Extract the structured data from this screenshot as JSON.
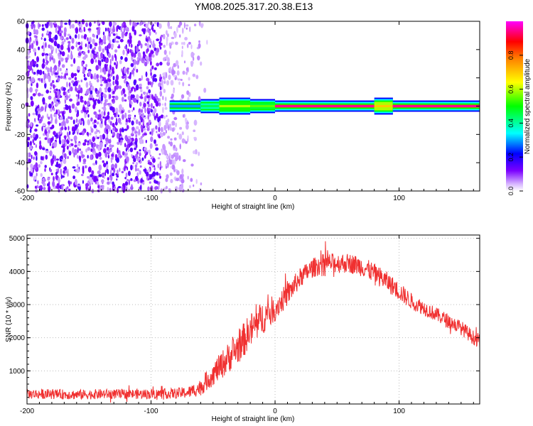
{
  "title": "YM08.2025.317.20.38.E13",
  "chart_data": [
    {
      "type": "heatmap",
      "name": "spectrogram",
      "xlabel": "Height of straight line (km)",
      "ylabel": "Frequency (Hz)",
      "xlim": [
        -200,
        165
      ],
      "ylim": [
        -60,
        60
      ],
      "xticks": [
        -200,
        -100,
        0,
        100
      ],
      "yticks": [
        -60,
        -40,
        -20,
        0,
        20,
        40,
        60
      ],
      "noise_region": {
        "x_start": -200,
        "x_end": -65,
        "description_free_value_range": [
          0.05,
          0.2
        ]
      },
      "signal_band": {
        "center_freq": 0,
        "segments": [
          {
            "x_start": -85,
            "x_end": -60,
            "amplitude": 0.3,
            "halfwidth_hz": 2
          },
          {
            "x_start": -60,
            "x_end": -45,
            "amplitude": 0.45,
            "halfwidth_hz": 3
          },
          {
            "x_start": -45,
            "x_end": -20,
            "amplitude": 0.6,
            "halfwidth_hz": 4
          },
          {
            "x_start": -20,
            "x_end": 0,
            "amplitude": 0.55,
            "halfwidth_hz": 3
          },
          {
            "x_start": 0,
            "x_end": 80,
            "amplitude": 0.95,
            "halfwidth_hz": 2
          },
          {
            "x_start": 80,
            "x_end": 95,
            "amplitude": 0.7,
            "halfwidth_hz": 4
          },
          {
            "x_start": 95,
            "x_end": 165,
            "amplitude": 0.95,
            "halfwidth_hz": 2
          }
        ]
      },
      "colorbar": {
        "label": "Normalized spectral amplitude",
        "range": [
          0,
          1
        ],
        "ticks": [
          "0.0",
          "0.2",
          "0.4",
          "0.6",
          "0.8"
        ],
        "tick_values": [
          0,
          0.2,
          0.4,
          0.6,
          0.8
        ]
      }
    },
    {
      "type": "line",
      "name": "snr",
      "xlabel": "Height of straight line (km)",
      "ylabel": "SNR (10 * v/v)",
      "xlim": [
        -200,
        165
      ],
      "ylim": [
        0,
        5100
      ],
      "xticks": [
        -200,
        -100,
        0,
        100
      ],
      "yticks": [
        1000,
        2000,
        3000,
        4000,
        5000
      ],
      "series": [
        {
          "name": "SNR",
          "color": "#f03030",
          "x": [
            -200,
            -180,
            -160,
            -140,
            -120,
            -100,
            -80,
            -70,
            -60,
            -50,
            -40,
            -30,
            -20,
            -10,
            0,
            10,
            20,
            30,
            40,
            50,
            60,
            70,
            80,
            90,
            100,
            110,
            120,
            130,
            140,
            150,
            160,
            165
          ],
          "y": [
            300,
            300,
            280,
            300,
            300,
            300,
            320,
            350,
            500,
            900,
            1300,
            1700,
            2200,
            2600,
            2900,
            3300,
            3800,
            4100,
            4250,
            4250,
            4250,
            4150,
            3950,
            3700,
            3400,
            3100,
            2900,
            2700,
            2500,
            2300,
            2000,
            1900
          ],
          "noise_amplitude": [
            150,
            150,
            150,
            150,
            150,
            150,
            160,
            180,
            250,
            350,
            450,
            500,
            550,
            500,
            400,
            350,
            300,
            300,
            300,
            300,
            300,
            300,
            300,
            300,
            280,
            250,
            230,
            220,
            220,
            220,
            220,
            220
          ]
        }
      ]
    }
  ]
}
